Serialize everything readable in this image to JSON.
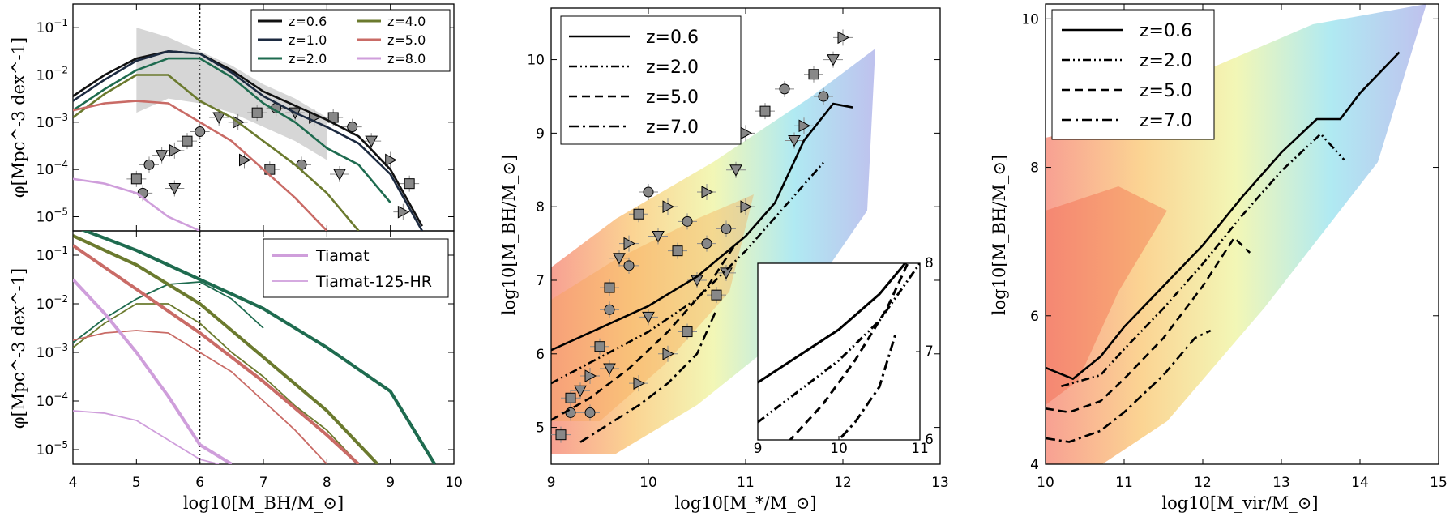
{
  "chart_data": [
    {
      "type": "line",
      "panel": "top-left",
      "xlim": [
        4,
        10
      ],
      "ylim": [
        -5.3,
        -0.5
      ],
      "yscale": "log",
      "xticks": [
        4,
        5,
        6,
        7,
        8,
        9,
        10
      ],
      "yticks": [
        "10^-1",
        "10^-2",
        "10^-3",
        "10^-4",
        "10^-5"
      ],
      "ylabel": "φ[Mpc^-3 dex^-1]",
      "vline_x": 6,
      "legend_position": "top-right",
      "series": [
        {
          "name": "z=0.6",
          "color": "#111111",
          "x": [
            4,
            4.5,
            5,
            5.5,
            6,
            6.5,
            7,
            7.5,
            8,
            8.5,
            9,
            9.5
          ],
          "y": [
            -2.45,
            -2.0,
            -1.65,
            -1.5,
            -1.55,
            -1.9,
            -2.35,
            -2.65,
            -2.95,
            -3.3,
            -4.0,
            -5.2
          ]
        },
        {
          "name": "z=1.0",
          "color": "#1c2a40",
          "x": [
            4,
            4.5,
            5,
            5.5,
            6,
            6.5,
            7,
            7.5,
            8,
            8.5,
            9,
            9.5
          ],
          "y": [
            -2.55,
            -2.1,
            -1.7,
            -1.5,
            -1.55,
            -1.95,
            -2.45,
            -2.8,
            -3.1,
            -3.45,
            -4.1,
            -5.3
          ]
        },
        {
          "name": "z=2.0",
          "color": "#1e6b4f",
          "x": [
            4,
            4.5,
            5,
            5.5,
            6,
            6.5,
            7,
            7.5,
            8,
            8.5,
            9
          ],
          "y": [
            -2.75,
            -2.3,
            -1.9,
            -1.65,
            -1.65,
            -2.05,
            -2.6,
            -3.0,
            -3.55,
            -3.9,
            -4.7
          ]
        },
        {
          "name": "z=4.0",
          "color": "#6b7a2e",
          "x": [
            4,
            4.5,
            5,
            5.5,
            6,
            6.5,
            7,
            7.5,
            8,
            8.5
          ],
          "y": [
            -2.9,
            -2.4,
            -2.0,
            -2.0,
            -2.55,
            -2.9,
            -3.4,
            -3.9,
            -4.5,
            -5.3
          ]
        },
        {
          "name": "z=5.0",
          "color": "#c96b66",
          "x": [
            4,
            4.5,
            5,
            5.5,
            6,
            6.5,
            7,
            7.5,
            8
          ],
          "y": [
            -2.75,
            -2.6,
            -2.55,
            -2.6,
            -3.0,
            -3.4,
            -4.0,
            -4.6,
            -5.3
          ]
        },
        {
          "name": "z=8.0",
          "color": "#cf9edb",
          "x": [
            4,
            4.5,
            5,
            5.5,
            6
          ],
          "y": [
            -4.2,
            -4.3,
            -4.5,
            -5.0,
            -5.3
          ]
        }
      ],
      "observations": {
        "x": [
          5,
          5.2,
          5.4,
          5.6,
          5.8,
          6,
          6.3,
          6.6,
          6.9,
          7.2,
          7.5,
          7.8,
          8.1,
          8.4,
          8.7,
          9,
          9.3,
          5.1,
          5.6,
          6.7,
          7.1,
          7.6,
          8.2,
          9.2
        ],
        "y": [
          -4.2,
          -3.9,
          -3.7,
          -3.6,
          -3.4,
          -3.2,
          -2.9,
          -3.0,
          -2.8,
          -2.7,
          -2.8,
          -2.9,
          -2.9,
          -3.1,
          -3.4,
          -3.8,
          -4.3,
          -4.5,
          -4.4,
          -3.8,
          -4.0,
          -3.9,
          -4.1,
          -4.9
        ]
      },
      "ribbon": {
        "x": [
          5,
          5.5,
          6,
          6.5,
          7,
          7.5,
          8
        ],
        "lo": [
          -2.8,
          -2.5,
          -2.6,
          -2.8,
          -3.1,
          -3.4,
          -3.8
        ],
        "hi": [
          -1.0,
          -1.2,
          -1.5,
          -1.8,
          -2.2,
          -2.5,
          -2.9
        ]
      }
    },
    {
      "type": "line",
      "panel": "bottom-left",
      "xlim": [
        4,
        10
      ],
      "ylim": [
        -5.3,
        -0.5
      ],
      "yscale": "log",
      "xticks": [
        4,
        5,
        6,
        7,
        8,
        9,
        10
      ],
      "yticks": [
        "10^-1",
        "10^-2",
        "10^-3",
        "10^-4",
        "10^-5"
      ],
      "xlabel": "log10[M_BH/M_⊙]",
      "ylabel": "φ[Mpc^-3 dex^-1]",
      "vline_x": 6,
      "legend_position": "top-right",
      "legend": [
        {
          "name": "Tiamat",
          "color": "#cf9edb",
          "width": 4
        },
        {
          "name": "Tiamat-125-HR",
          "color": "#cf9edb",
          "width": 1.8
        }
      ],
      "series": [
        {
          "color": "#1e6b4f",
          "width": 4,
          "x": [
            4,
            5,
            6,
            7,
            8,
            9,
            9.7
          ],
          "y": [
            -0.4,
            -0.9,
            -1.5,
            -2.1,
            -2.9,
            -3.8,
            -5.3
          ]
        },
        {
          "color": "#1e6b4f",
          "width": 1.8,
          "x": [
            4,
            4.5,
            5,
            5.5,
            6,
            6.5,
            7
          ],
          "y": [
            -2.8,
            -2.3,
            -1.9,
            -1.6,
            -1.55,
            -1.9,
            -2.5
          ]
        },
        {
          "color": "#6b7a2e",
          "width": 4,
          "x": [
            4,
            5,
            6,
            7,
            8,
            8.8
          ],
          "y": [
            -0.6,
            -1.2,
            -2.0,
            -3.1,
            -4.2,
            -5.3
          ]
        },
        {
          "color": "#6b7a2e",
          "width": 1.8,
          "x": [
            4,
            4.5,
            5,
            5.5,
            6,
            6.5,
            7,
            7.5,
            8,
            8.5
          ],
          "y": [
            -2.9,
            -2.4,
            -2.0,
            -2.0,
            -2.4,
            -3.0,
            -3.5,
            -4.1,
            -4.6,
            -5.3
          ]
        },
        {
          "color": "#c96b66",
          "width": 4,
          "x": [
            4,
            5,
            6,
            7,
            8,
            8.5
          ],
          "y": [
            -0.8,
            -1.7,
            -2.6,
            -3.6,
            -4.7,
            -5.3
          ]
        },
        {
          "color": "#c96b66",
          "width": 1.8,
          "x": [
            4,
            4.5,
            5,
            5.5,
            6,
            6.5,
            7,
            7.5,
            8
          ],
          "y": [
            -2.75,
            -2.6,
            -2.55,
            -2.6,
            -3.0,
            -3.4,
            -4.0,
            -4.6,
            -5.3
          ]
        },
        {
          "color": "#cf9edb",
          "width": 4,
          "x": [
            4,
            4.5,
            5,
            5.5,
            6,
            6.5
          ],
          "y": [
            -1.5,
            -2.2,
            -3.0,
            -3.9,
            -4.9,
            -5.3
          ]
        },
        {
          "color": "#cf9edb",
          "width": 1.8,
          "x": [
            4,
            4.5,
            5,
            5.5,
            6,
            6.3
          ],
          "y": [
            -4.2,
            -4.25,
            -4.4,
            -4.8,
            -5.2,
            -5.3
          ]
        }
      ]
    },
    {
      "type": "line",
      "panel": "middle",
      "xlim": [
        9,
        13
      ],
      "ylim": [
        4.5,
        10.7
      ],
      "xticks": [
        9,
        10,
        11,
        12,
        13
      ],
      "yticks": [
        5,
        6,
        7,
        8,
        9,
        10
      ],
      "xlabel": "log10[M_*/M_⊙]",
      "ylabel": "log10[M_BH/M_⊙]",
      "legend_position": "top-left",
      "series": [
        {
          "name": "z=0.6",
          "dash": "solid",
          "x": [
            9,
            9.5,
            10,
            10.5,
            11,
            11.3,
            11.6,
            11.9,
            12.1
          ],
          "y": [
            6.05,
            6.35,
            6.65,
            7.05,
            7.6,
            8.05,
            8.9,
            9.4,
            9.35
          ]
        },
        {
          "name": "z=2.0",
          "dash": "dashdotdot",
          "x": [
            9,
            9.5,
            10,
            10.5,
            11,
            11.4,
            11.8
          ],
          "y": [
            5.6,
            5.95,
            6.3,
            6.75,
            7.4,
            8.0,
            8.6
          ]
        },
        {
          "name": "z=5.0",
          "dash": "dashed",
          "x": [
            9,
            9.4,
            9.8,
            10.2,
            10.6,
            10.9
          ],
          "y": [
            5.1,
            5.4,
            5.8,
            6.3,
            6.9,
            7.5
          ]
        },
        {
          "name": "z=7.0",
          "dash": "dashdot",
          "x": [
            9.3,
            9.6,
            9.9,
            10.2,
            10.5,
            10.7
          ],
          "y": [
            4.8,
            5.05,
            5.3,
            5.6,
            6.0,
            6.6
          ]
        }
      ],
      "inset": {
        "xlim": [
          9,
          11
        ],
        "ylim": [
          6,
          8
        ],
        "xticks": [
          9,
          10,
          11
        ],
        "yticks": [
          6,
          7,
          8
        ]
      },
      "observations": {
        "x": [
          9.1,
          9.2,
          9.3,
          9.4,
          9.5,
          9.6,
          9.7,
          9.8,
          9.9,
          10.0,
          10.1,
          10.2,
          10.3,
          10.4,
          10.5,
          10.6,
          10.7,
          10.8,
          10.9,
          11.0,
          11.2,
          11.4,
          11.5,
          11.6,
          11.7,
          11.8,
          11.9,
          12.0,
          9.6,
          9.8,
          10.0,
          10.2,
          10.4,
          10.6,
          10.8,
          11.0,
          9.2,
          9.4,
          9.6,
          9.9
        ],
        "y": [
          4.9,
          5.2,
          5.5,
          5.7,
          6.1,
          6.6,
          7.3,
          7.5,
          7.9,
          8.2,
          7.6,
          8.0,
          7.4,
          7.8,
          7.0,
          8.2,
          6.8,
          7.7,
          8.5,
          9.0,
          9.3,
          9.6,
          8.9,
          9.1,
          9.8,
          9.5,
          10.0,
          10.3,
          6.9,
          7.2,
          6.5,
          6.0,
          6.3,
          7.5,
          7.1,
          8.0,
          5.4,
          5.2,
          5.8,
          5.6
        ]
      }
    },
    {
      "type": "line",
      "panel": "right",
      "xlim": [
        10,
        15
      ],
      "ylim": [
        4,
        10.2
      ],
      "xticks": [
        10,
        11,
        12,
        13,
        14,
        15
      ],
      "yticks": [
        4,
        6,
        8,
        10
      ],
      "xlabel": "log10[M_vir/M_⊙]",
      "ylabel": "log10[M_BH/M_⊙]",
      "legend_position": "top-left",
      "series": [
        {
          "name": "z=0.6",
          "dash": "solid",
          "x": [
            10,
            10.35,
            10.7,
            11,
            11.5,
            12,
            12.5,
            13,
            13.45,
            13.75,
            14,
            14.5
          ],
          "y": [
            5.3,
            5.15,
            5.45,
            5.85,
            6.4,
            6.95,
            7.6,
            8.2,
            8.65,
            8.65,
            9.0,
            9.55
          ]
        },
        {
          "name": "z=2.0",
          "dash": "dashdotdot",
          "x": [
            10.2,
            10.7,
            11,
            11.5,
            12,
            12.5,
            13,
            13.5,
            13.8
          ],
          "y": [
            5.05,
            5.2,
            5.55,
            6.1,
            6.7,
            7.35,
            7.95,
            8.45,
            8.1
          ]
        },
        {
          "name": "z=5.0",
          "dash": "dashed",
          "x": [
            10,
            10.3,
            10.7,
            11,
            11.5,
            12,
            12.4,
            12.6
          ],
          "y": [
            4.75,
            4.7,
            4.85,
            5.15,
            5.7,
            6.4,
            7.05,
            6.85
          ]
        },
        {
          "name": "z=7.0",
          "dash": "dashdot",
          "x": [
            10,
            10.3,
            10.7,
            11,
            11.5,
            11.9,
            12.1
          ],
          "y": [
            4.35,
            4.3,
            4.45,
            4.7,
            5.2,
            5.7,
            5.8
          ]
        }
      ]
    }
  ]
}
